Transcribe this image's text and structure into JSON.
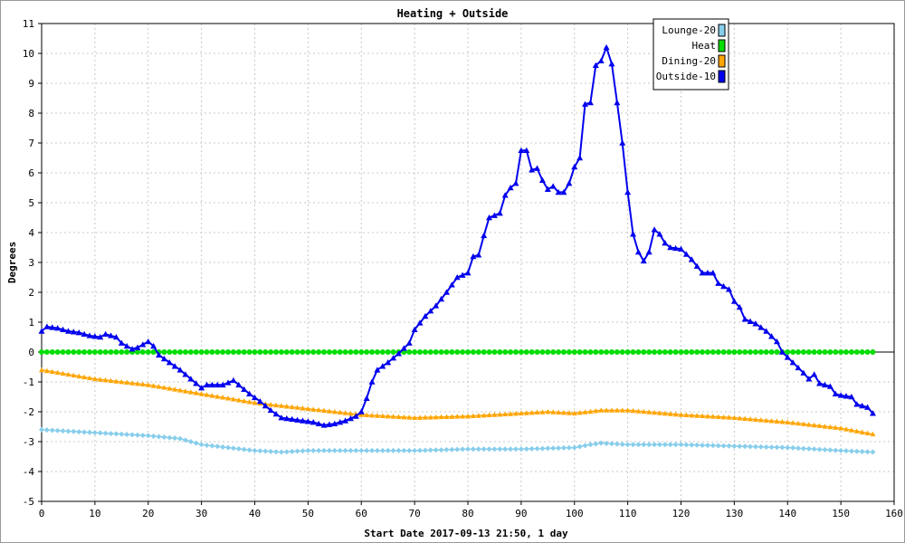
{
  "chart_data": {
    "type": "line",
    "title": "Heating + Outside",
    "xlabel": "Start Date 2017-09-13 21:50, 1 day",
    "ylabel": "Degrees",
    "xlim": [
      0,
      160
    ],
    "ylim": [
      -5,
      11
    ],
    "x_ticks": [
      0,
      10,
      20,
      30,
      40,
      50,
      60,
      70,
      80,
      90,
      100,
      110,
      120,
      130,
      140,
      150,
      160
    ],
    "y_ticks": [
      -5,
      -4,
      -3,
      -2,
      -1,
      0,
      1,
      2,
      3,
      4,
      5,
      6,
      7,
      8,
      9,
      10,
      11
    ],
    "grid": true,
    "legend_position": "top-right",
    "series": [
      {
        "name": "Lounge-20",
        "color": "#87CEEB",
        "marker": "diamond",
        "points": [
          [
            0,
            -2.6
          ],
          [
            10,
            -2.7
          ],
          [
            20,
            -2.8
          ],
          [
            26,
            -2.9
          ],
          [
            30,
            -3.1
          ],
          [
            35,
            -3.2
          ],
          [
            40,
            -3.3
          ],
          [
            45,
            -3.35
          ],
          [
            50,
            -3.3
          ],
          [
            60,
            -3.3
          ],
          [
            70,
            -3.3
          ],
          [
            80,
            -3.25
          ],
          [
            90,
            -3.25
          ],
          [
            100,
            -3.2
          ],
          [
            103,
            -3.1
          ],
          [
            105,
            -3.05
          ],
          [
            110,
            -3.1
          ],
          [
            120,
            -3.1
          ],
          [
            130,
            -3.15
          ],
          [
            140,
            -3.2
          ],
          [
            150,
            -3.3
          ],
          [
            156,
            -3.35
          ]
        ]
      },
      {
        "name": "Heat",
        "color": "#00DD00",
        "marker": "circle",
        "points": [
          [
            0,
            0
          ],
          [
            156,
            0
          ]
        ]
      },
      {
        "name": "Dining-20",
        "color": "#FFA500",
        "marker": "triangle",
        "points": [
          [
            0,
            -0.6
          ],
          [
            5,
            -0.75
          ],
          [
            10,
            -0.9
          ],
          [
            20,
            -1.1
          ],
          [
            30,
            -1.4
          ],
          [
            40,
            -1.7
          ],
          [
            50,
            -1.9
          ],
          [
            60,
            -2.1
          ],
          [
            70,
            -2.2
          ],
          [
            80,
            -2.15
          ],
          [
            90,
            -2.05
          ],
          [
            95,
            -2.0
          ],
          [
            100,
            -2.05
          ],
          [
            105,
            -1.95
          ],
          [
            110,
            -1.95
          ],
          [
            120,
            -2.1
          ],
          [
            130,
            -2.2
          ],
          [
            140,
            -2.35
          ],
          [
            150,
            -2.55
          ],
          [
            156,
            -2.75
          ]
        ]
      },
      {
        "name": "Outside-10",
        "color": "#0000EE",
        "marker": "triangle",
        "points": [
          [
            0,
            0.7
          ],
          [
            1,
            0.85
          ],
          [
            3,
            0.8
          ],
          [
            5,
            0.7
          ],
          [
            7,
            0.65
          ],
          [
            9,
            0.55
          ],
          [
            11,
            0.5
          ],
          [
            12,
            0.6
          ],
          [
            14,
            0.5
          ],
          [
            15,
            0.3
          ],
          [
            17,
            0.1
          ],
          [
            18,
            0.15
          ],
          [
            20,
            0.35
          ],
          [
            21,
            0.2
          ],
          [
            22,
            -0.1
          ],
          [
            24,
            -0.35
          ],
          [
            26,
            -0.6
          ],
          [
            28,
            -0.9
          ],
          [
            30,
            -1.2
          ],
          [
            31,
            -1.1
          ],
          [
            34,
            -1.1
          ],
          [
            36,
            -0.95
          ],
          [
            37,
            -1.1
          ],
          [
            39,
            -1.4
          ],
          [
            41,
            -1.65
          ],
          [
            43,
            -1.95
          ],
          [
            45,
            -2.2
          ],
          [
            47,
            -2.25
          ],
          [
            49,
            -2.3
          ],
          [
            51,
            -2.35
          ],
          [
            53,
            -2.45
          ],
          [
            55,
            -2.4
          ],
          [
            57,
            -2.3
          ],
          [
            59,
            -2.15
          ],
          [
            60,
            -2.0
          ],
          [
            61,
            -1.55
          ],
          [
            62,
            -1.0
          ],
          [
            63,
            -0.6
          ],
          [
            65,
            -0.35
          ],
          [
            67,
            -0.05
          ],
          [
            69,
            0.3
          ],
          [
            70,
            0.75
          ],
          [
            72,
            1.2
          ],
          [
            74,
            1.55
          ],
          [
            76,
            2.0
          ],
          [
            78,
            2.5
          ],
          [
            80,
            2.65
          ],
          [
            81,
            3.2
          ],
          [
            82,
            3.25
          ],
          [
            83,
            3.9
          ],
          [
            84,
            4.5
          ],
          [
            86,
            4.65
          ],
          [
            87,
            5.25
          ],
          [
            88,
            5.5
          ],
          [
            89,
            5.65
          ],
          [
            90,
            6.75
          ],
          [
            91,
            6.75
          ],
          [
            92,
            6.1
          ],
          [
            93,
            6.15
          ],
          [
            94,
            5.75
          ],
          [
            95,
            5.45
          ],
          [
            96,
            5.55
          ],
          [
            97,
            5.35
          ],
          [
            98,
            5.35
          ],
          [
            99,
            5.65
          ],
          [
            100,
            6.2
          ],
          [
            101,
            6.5
          ],
          [
            102,
            8.3
          ],
          [
            103,
            8.35
          ],
          [
            104,
            9.6
          ],
          [
            105,
            9.75
          ],
          [
            106,
            10.2
          ],
          [
            107,
            9.65
          ],
          [
            108,
            8.35
          ],
          [
            109,
            7.0
          ],
          [
            110,
            5.35
          ],
          [
            111,
            3.95
          ],
          [
            112,
            3.35
          ],
          [
            113,
            3.05
          ],
          [
            114,
            3.35
          ],
          [
            115,
            4.1
          ],
          [
            116,
            3.95
          ],
          [
            117,
            3.65
          ],
          [
            118,
            3.5
          ],
          [
            120,
            3.45
          ],
          [
            122,
            3.1
          ],
          [
            124,
            2.65
          ],
          [
            126,
            2.65
          ],
          [
            127,
            2.3
          ],
          [
            129,
            2.1
          ],
          [
            130,
            1.7
          ],
          [
            131,
            1.5
          ],
          [
            132,
            1.1
          ],
          [
            134,
            0.95
          ],
          [
            136,
            0.7
          ],
          [
            138,
            0.35
          ],
          [
            139,
            0.0
          ],
          [
            141,
            -0.35
          ],
          [
            143,
            -0.7
          ],
          [
            144,
            -0.9
          ],
          [
            145,
            -0.75
          ],
          [
            146,
            -1.05
          ],
          [
            148,
            -1.15
          ],
          [
            149,
            -1.4
          ],
          [
            150,
            -1.45
          ],
          [
            152,
            -1.5
          ],
          [
            153,
            -1.75
          ],
          [
            155,
            -1.85
          ],
          [
            156,
            -2.05
          ]
        ]
      }
    ]
  }
}
